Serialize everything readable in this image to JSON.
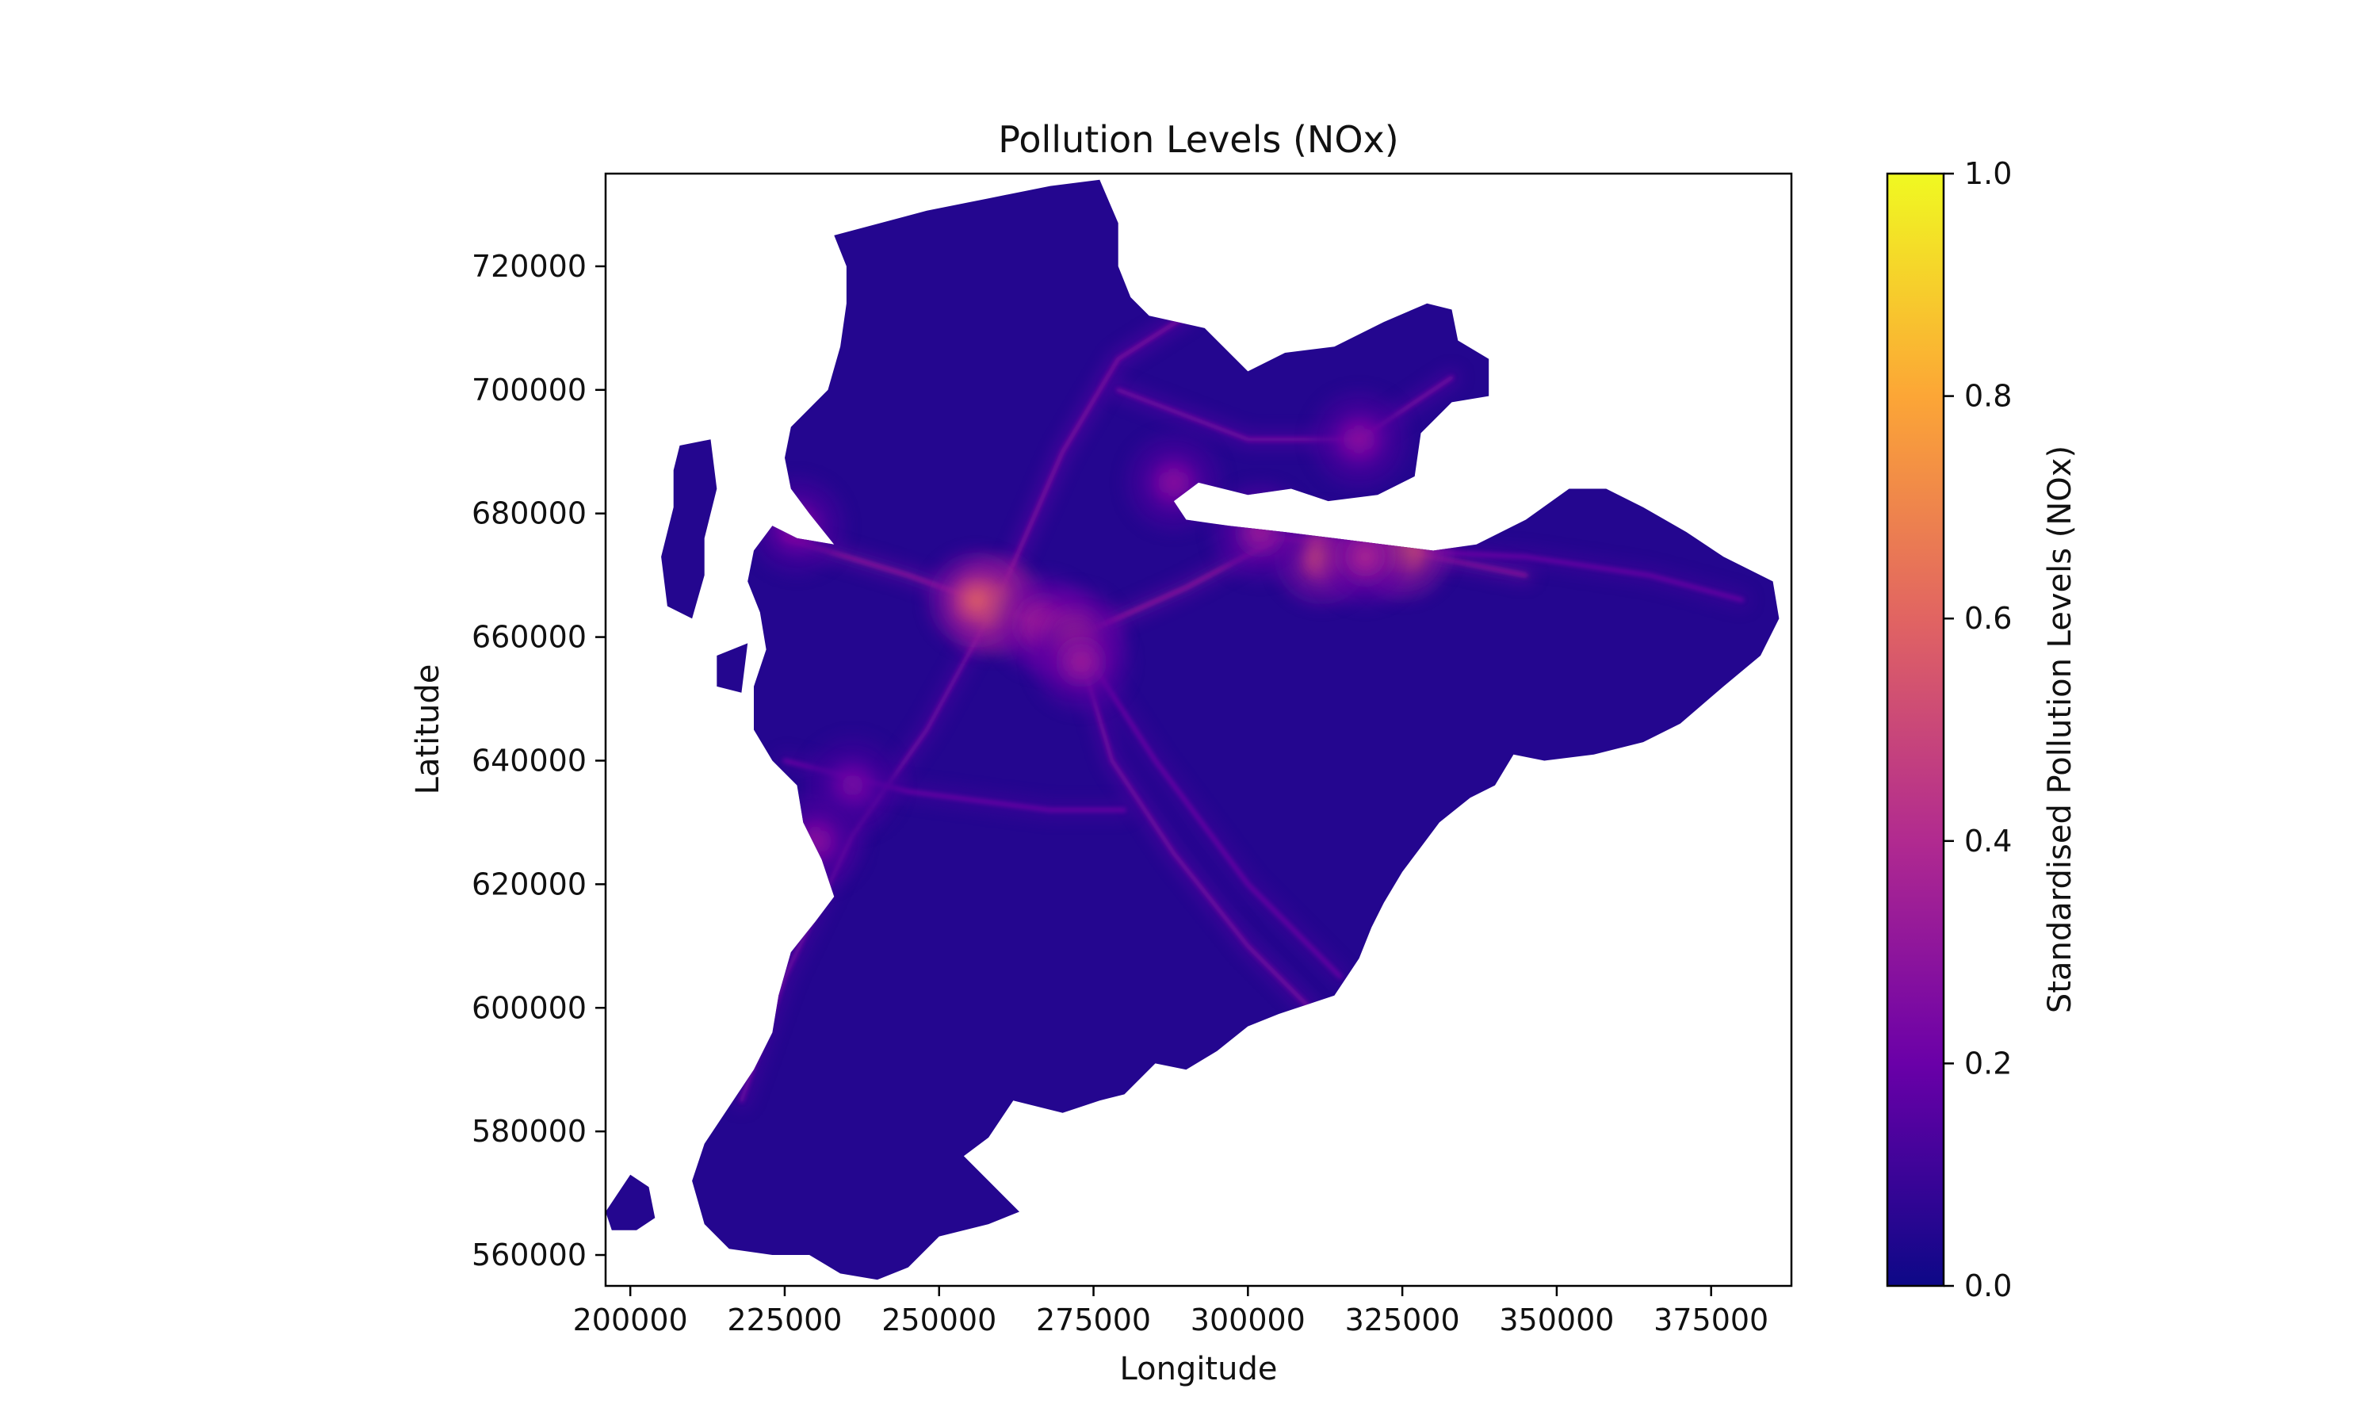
{
  "chart_data": {
    "type": "heatmap",
    "title": "Pollution Levels (NOx)",
    "xlabel": "Longitude",
    "ylabel": "Latitude",
    "xlim": [
      196000,
      388000
    ],
    "ylim": [
      555000,
      735000
    ],
    "x_ticks": [
      200000,
      225000,
      250000,
      275000,
      300000,
      325000,
      350000,
      375000
    ],
    "x_tick_labels": [
      "200000",
      "225000",
      "250000",
      "275000",
      "300000",
      "325000",
      "350000",
      "375000"
    ],
    "y_ticks": [
      560000,
      580000,
      600000,
      620000,
      640000,
      660000,
      680000,
      700000,
      720000
    ],
    "y_tick_labels": [
      "560000",
      "580000",
      "600000",
      "620000",
      "640000",
      "660000",
      "680000",
      "700000",
      "720000"
    ],
    "grid": false,
    "colormap": "plasma",
    "colorbar": {
      "label": "Standardised Pollution Levels (NOx)",
      "range": [
        0.0,
        1.0
      ],
      "ticks": [
        0.0,
        0.2,
        0.4,
        0.6,
        0.8,
        1.0
      ],
      "tick_labels": [
        "0.0",
        "0.2",
        "0.4",
        "0.6",
        "0.8",
        "1.0"
      ],
      "colors": [
        "#0d0887",
        "#6a00a8",
        "#b12a90",
        "#e16462",
        "#fca636",
        "#f0f921"
      ]
    },
    "background_level": 0.05,
    "region_outline": [
      [
        233000,
        725000
      ],
      [
        248000,
        729000
      ],
      [
        258000,
        731000
      ],
      [
        268000,
        733000
      ],
      [
        276000,
        734000
      ],
      [
        279000,
        727000
      ],
      [
        279000,
        720000
      ],
      [
        281000,
        715000
      ],
      [
        284000,
        712000
      ],
      [
        293000,
        710000
      ],
      [
        300000,
        703000
      ],
      [
        306000,
        706000
      ],
      [
        314000,
        707000
      ],
      [
        322000,
        711000
      ],
      [
        329000,
        714000
      ],
      [
        333000,
        713000
      ],
      [
        334000,
        708000
      ],
      [
        339000,
        705000
      ],
      [
        339000,
        699000
      ],
      [
        333000,
        698000
      ],
      [
        328000,
        693000
      ],
      [
        327000,
        686000
      ],
      [
        321000,
        683000
      ],
      [
        313000,
        682000
      ],
      [
        307000,
        684000
      ],
      [
        300000,
        683000
      ],
      [
        292000,
        685000
      ],
      [
        288000,
        682000
      ],
      [
        290000,
        679000
      ],
      [
        297000,
        678000
      ],
      [
        306000,
        677000
      ],
      [
        314000,
        676000
      ],
      [
        322000,
        675000
      ],
      [
        330000,
        674000
      ],
      [
        337000,
        675000
      ],
      [
        345000,
        679000
      ],
      [
        352000,
        684000
      ],
      [
        358000,
        684000
      ],
      [
        364000,
        681000
      ],
      [
        371000,
        677000
      ],
      [
        377000,
        673000
      ],
      [
        385000,
        669000
      ],
      [
        386000,
        663000
      ],
      [
        383000,
        657000
      ],
      [
        377000,
        652000
      ],
      [
        370000,
        646000
      ],
      [
        364000,
        643000
      ],
      [
        356000,
        641000
      ],
      [
        348000,
        640000
      ],
      [
        343000,
        641000
      ],
      [
        340000,
        636000
      ],
      [
        336000,
        634000
      ],
      [
        331000,
        630000
      ],
      [
        328000,
        626000
      ],
      [
        325000,
        622000
      ],
      [
        322000,
        617000
      ],
      [
        320000,
        613000
      ],
      [
        318000,
        608000
      ],
      [
        314000,
        602000
      ],
      [
        305000,
        599000
      ],
      [
        300000,
        597000
      ],
      [
        295000,
        593000
      ],
      [
        290000,
        590000
      ],
      [
        285000,
        591000
      ],
      [
        280000,
        586000
      ],
      [
        276000,
        585000
      ],
      [
        270000,
        583000
      ],
      [
        262000,
        585000
      ],
      [
        258000,
        579000
      ],
      [
        254000,
        576000
      ],
      [
        258000,
        572000
      ],
      [
        263000,
        567000
      ],
      [
        258000,
        565000
      ],
      [
        250000,
        563000
      ],
      [
        245000,
        558000
      ],
      [
        240000,
        556000
      ],
      [
        234000,
        557000
      ],
      [
        229000,
        560000
      ],
      [
        223000,
        560000
      ],
      [
        216000,
        561000
      ],
      [
        212000,
        565000
      ],
      [
        210000,
        572000
      ],
      [
        212000,
        578000
      ],
      [
        216000,
        584000
      ],
      [
        220000,
        590000
      ],
      [
        223000,
        596000
      ],
      [
        224000,
        602000
      ],
      [
        226000,
        609000
      ],
      [
        230000,
        614000
      ],
      [
        233000,
        618000
      ],
      [
        231000,
        624000
      ],
      [
        228000,
        630000
      ],
      [
        227000,
        636000
      ],
      [
        223000,
        640000
      ],
      [
        220000,
        645000
      ],
      [
        220000,
        652000
      ],
      [
        222000,
        658000
      ],
      [
        221000,
        664000
      ],
      [
        219000,
        669000
      ],
      [
        220000,
        674000
      ],
      [
        223000,
        678000
      ],
      [
        227000,
        676000
      ],
      [
        233000,
        675000
      ],
      [
        229000,
        680000
      ],
      [
        226000,
        684000
      ],
      [
        225000,
        689000
      ],
      [
        226000,
        694000
      ],
      [
        229000,
        697000
      ],
      [
        232000,
        700000
      ],
      [
        234000,
        707000
      ],
      [
        235000,
        714000
      ],
      [
        235000,
        720000
      ]
    ],
    "islands": [
      [
        [
          208000,
          691000
        ],
        [
          213000,
          692000
        ],
        [
          214000,
          684000
        ],
        [
          212000,
          676000
        ],
        [
          212000,
          670000
        ],
        [
          210000,
          663000
        ],
        [
          206000,
          665000
        ],
        [
          205000,
          673000
        ],
        [
          207000,
          681000
        ],
        [
          207000,
          687000
        ]
      ],
      [
        [
          196000,
          567000
        ],
        [
          200000,
          573000
        ],
        [
          203000,
          571000
        ],
        [
          204000,
          566000
        ],
        [
          201000,
          564000
        ],
        [
          197000,
          564000
        ]
      ],
      [
        [
          214000,
          657000
        ],
        [
          219000,
          659000
        ],
        [
          218000,
          651000
        ],
        [
          214000,
          652000
        ]
      ]
    ],
    "hotspots": [
      {
        "x": 259000,
        "y": 665000,
        "level": 0.85
      },
      {
        "x": 256000,
        "y": 666000,
        "level": 0.6
      },
      {
        "x": 267000,
        "y": 662000,
        "level": 0.45
      },
      {
        "x": 272000,
        "y": 660000,
        "level": 0.5
      },
      {
        "x": 273000,
        "y": 656000,
        "level": 0.35
      },
      {
        "x": 312000,
        "y": 673000,
        "level": 0.55
      },
      {
        "x": 325000,
        "y": 674000,
        "level": 0.65
      },
      {
        "x": 319000,
        "y": 673000,
        "level": 0.4
      },
      {
        "x": 302000,
        "y": 677000,
        "level": 0.35
      },
      {
        "x": 318000,
        "y": 692000,
        "level": 0.3
      },
      {
        "x": 227000,
        "y": 678000,
        "level": 0.3
      },
      {
        "x": 236000,
        "y": 636000,
        "level": 0.25
      },
      {
        "x": 230000,
        "y": 627000,
        "level": 0.3
      },
      {
        "x": 288000,
        "y": 685000,
        "level": 0.3
      }
    ],
    "corridors": [
      {
        "level": 0.32,
        "points": [
          [
            225000,
            676000
          ],
          [
            245000,
            670000
          ],
          [
            259000,
            665000
          ],
          [
            272000,
            660000
          ],
          [
            290000,
            668000
          ],
          [
            305000,
            676000
          ],
          [
            325000,
            674000
          ],
          [
            345000,
            670000
          ]
        ]
      },
      {
        "level": 0.28,
        "points": [
          [
            259000,
            665000
          ],
          [
            270000,
            690000
          ],
          [
            279000,
            705000
          ],
          [
            290000,
            712000
          ]
        ]
      },
      {
        "level": 0.26,
        "points": [
          [
            279000,
            700000
          ],
          [
            300000,
            692000
          ],
          [
            318000,
            692000
          ],
          [
            333000,
            702000
          ]
        ]
      },
      {
        "level": 0.26,
        "points": [
          [
            272000,
            660000
          ],
          [
            278000,
            640000
          ],
          [
            288000,
            625000
          ],
          [
            300000,
            610000
          ],
          [
            310000,
            600000
          ]
        ]
      },
      {
        "level": 0.24,
        "points": [
          [
            259000,
            665000
          ],
          [
            248000,
            645000
          ],
          [
            236000,
            628000
          ],
          [
            225000,
            605000
          ],
          [
            218000,
            585000
          ]
        ]
      },
      {
        "level": 0.22,
        "points": [
          [
            272000,
            660000
          ],
          [
            285000,
            640000
          ],
          [
            300000,
            620000
          ],
          [
            315000,
            605000
          ]
        ]
      },
      {
        "level": 0.22,
        "points": [
          [
            325000,
            674000
          ],
          [
            345000,
            673000
          ],
          [
            365000,
            670000
          ],
          [
            380000,
            666000
          ]
        ]
      },
      {
        "level": 0.22,
        "points": [
          [
            225000,
            640000
          ],
          [
            245000,
            635000
          ],
          [
            268000,
            632000
          ],
          [
            280000,
            632000
          ]
        ]
      }
    ]
  }
}
